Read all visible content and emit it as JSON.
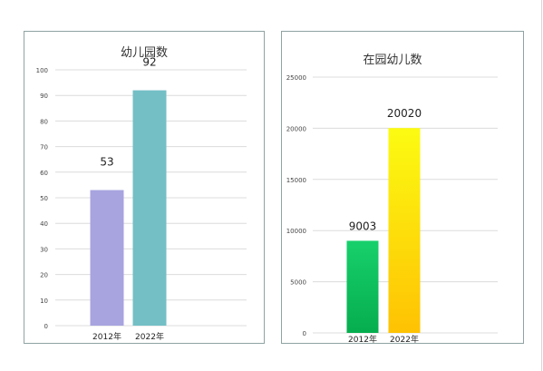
{
  "chart_data": [
    {
      "type": "bar",
      "title": "幼儿园数",
      "categories": [
        "2012年",
        "2022年"
      ],
      "values": [
        53,
        92
      ],
      "data_labels": [
        "53",
        "92"
      ],
      "ylim": [
        0,
        100
      ],
      "yticks": [
        0,
        10,
        20,
        30,
        40,
        50,
        60,
        70,
        80,
        90,
        100
      ],
      "ytick_labels": [
        "0",
        "10",
        "20",
        "30",
        "40",
        "50",
        "60",
        "70",
        "80",
        "90",
        "100"
      ],
      "grid": true,
      "bar_colors": [
        "#a7a4df",
        "#74bfc6"
      ]
    },
    {
      "type": "bar",
      "title": "在园幼儿数",
      "categories": [
        "2012年",
        "2022年"
      ],
      "values": [
        9003,
        20020
      ],
      "data_labels": [
        "9003",
        "20020"
      ],
      "ylim": [
        0,
        25000
      ],
      "yticks": [
        0,
        5000,
        10000,
        15000,
        20000,
        25000
      ],
      "ytick_labels": [
        "0",
        "5000",
        "10000",
        "15000",
        "20000",
        "25000"
      ],
      "grid": true,
      "bar_gradients": [
        [
          "#17d06c",
          "#06ad4e"
        ],
        [
          "#fcfb12",
          "#fec203"
        ]
      ]
    }
  ]
}
